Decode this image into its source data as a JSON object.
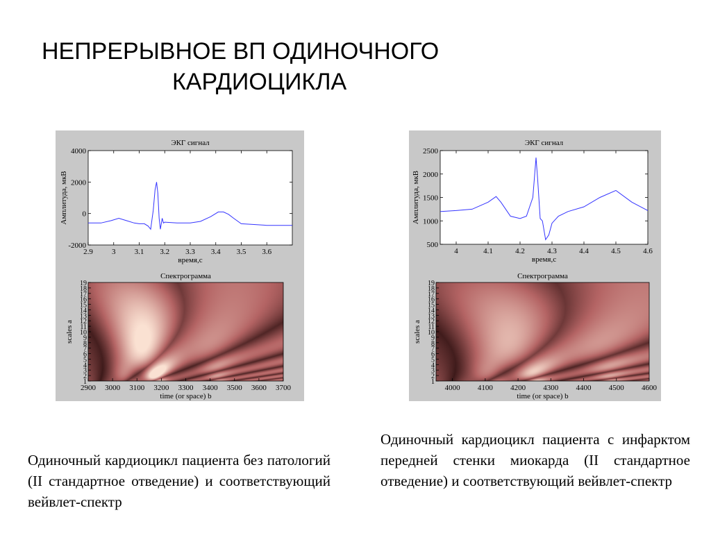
{
  "slide": {
    "title_line1": "НЕПРЕРЫВНОЕ ВП ОДИНОЧНОГО",
    "title_line2": "КАРДИОЦИКЛА"
  },
  "colors": {
    "panel_bg": "#c8c8c8",
    "signal_line": "#3333ff",
    "spectrum_dark": "#1a0000",
    "spectrum_mid": "#b46a6a",
    "spectrum_bright": "#f4d8c8"
  },
  "figures": [
    {
      "caption": "Одиночный кардиоцикл пациента без патологий (II стандартное отведение) и соответствующий вейвлет-спектр",
      "ecg": {
        "title": "ЭКГ сигнал",
        "xlabel": "время,с",
        "ylabel": "Амплитуда, мкВ",
        "xticks": [
          "2.9",
          "3",
          "3.1",
          "3.2",
          "3.3",
          "3.4",
          "3.5",
          "3.6"
        ],
        "yticks": [
          "4000",
          "2000",
          "0",
          "-2000"
        ]
      },
      "spectrogram": {
        "title": "Спектрограмма",
        "xlabel": "time (or space) b",
        "ylabel": "scales a",
        "xticks": [
          "2900",
          "3000",
          "3100",
          "3200",
          "3300",
          "3400",
          "3500",
          "3600",
          "3700"
        ]
      }
    },
    {
      "caption": "Одиночный кардиоцикл пациента с инфарктом передней стенки миокарда (II стандартное отведение) и соответствующий вейвлет-спектр",
      "ecg": {
        "title": "ЭКГ сигнал",
        "xlabel": "время,с",
        "ylabel": "Амплитуда, мкВ",
        "xticks": [
          "4",
          "4.1",
          "4.2",
          "4.3",
          "4.4",
          "4.5",
          "4.6"
        ],
        "yticks": [
          "2500",
          "2000",
          "1500",
          "1000",
          "500"
        ]
      },
      "spectrogram": {
        "title": "Спектрограмма",
        "xlabel": "time (or space) b",
        "ylabel": "scales a",
        "xticks": [
          "4000",
          "4100",
          "4200",
          "4300",
          "4400",
          "4500",
          "4600"
        ]
      }
    }
  ],
  "chart_data": [
    {
      "type": "line",
      "title": "ЭКГ сигнал",
      "xlabel": "время,с",
      "ylabel": "Амплитуда, мкВ",
      "xlim": [
        2.9,
        3.7
      ],
      "ylim": [
        -2000,
        4000
      ],
      "grid": false,
      "series": [
        {
          "x": [
            2.9,
            2.95,
            2.99,
            3.02,
            3.05,
            3.08,
            3.1,
            3.12,
            3.135,
            3.145,
            3.155,
            3.162,
            3.168,
            3.173,
            3.178,
            3.183,
            3.19,
            3.195,
            3.2,
            3.25,
            3.3,
            3.34,
            3.38,
            3.41,
            3.43,
            3.45,
            3.47,
            3.5,
            3.55,
            3.6,
            3.65,
            3.7
          ],
          "y": [
            -600,
            -600,
            -450,
            -300,
            -450,
            -600,
            -650,
            -650,
            -800,
            -1000,
            200,
            1500,
            2000,
            1300,
            -300,
            -1000,
            -300,
            -600,
            -550,
            -600,
            -600,
            -500,
            -200,
            100,
            100,
            -50,
            -300,
            -650,
            -700,
            -750,
            -750,
            -750
          ]
        }
      ]
    },
    {
      "type": "heatmap",
      "title": "Спектрограмма",
      "xlabel": "time (or space) b",
      "ylabel": "scales a",
      "xlim": [
        2900,
        3700
      ],
      "ylim": [
        1,
        19
      ],
      "xticks": [
        2900,
        3000,
        3100,
        3200,
        3300,
        3400,
        3500,
        3600,
        3700
      ],
      "yticks": [
        1,
        2,
        3,
        4,
        5,
        6,
        7,
        8,
        9,
        10,
        11,
        12,
        13,
        14,
        15,
        16,
        17,
        18,
        19
      ]
    },
    {
      "type": "line",
      "title": "ЭКГ сигнал",
      "xlabel": "время,с",
      "ylabel": "Амплитуда, мкВ",
      "xlim": [
        3.95,
        4.6
      ],
      "ylim": [
        500,
        2500
      ],
      "grid": false,
      "series": [
        {
          "x": [
            3.95,
            4.0,
            4.05,
            4.1,
            4.125,
            4.14,
            4.17,
            4.2,
            4.22,
            4.23,
            4.24,
            4.25,
            4.255,
            4.263,
            4.27,
            4.28,
            4.29,
            4.3,
            4.32,
            4.35,
            4.4,
            4.45,
            4.5,
            4.55,
            4.6
          ],
          "y": [
            1200,
            1220,
            1250,
            1400,
            1520,
            1400,
            1100,
            1050,
            1100,
            1300,
            1500,
            2350,
            1900,
            1050,
            1000,
            600,
            700,
            950,
            1100,
            1200,
            1300,
            1500,
            1650,
            1400,
            1220
          ]
        }
      ]
    },
    {
      "type": "heatmap",
      "title": "Спектрограмма",
      "xlabel": "time (or space) b",
      "ylabel": "scales a",
      "xlim": [
        3950,
        4600
      ],
      "ylim": [
        1,
        19
      ],
      "xticks": [
        4000,
        4100,
        4200,
        4300,
        4400,
        4500,
        4600
      ],
      "yticks": [
        1,
        2,
        3,
        4,
        5,
        6,
        7,
        8,
        9,
        10,
        11,
        12,
        13,
        14,
        15,
        16,
        17,
        18,
        19
      ]
    }
  ]
}
